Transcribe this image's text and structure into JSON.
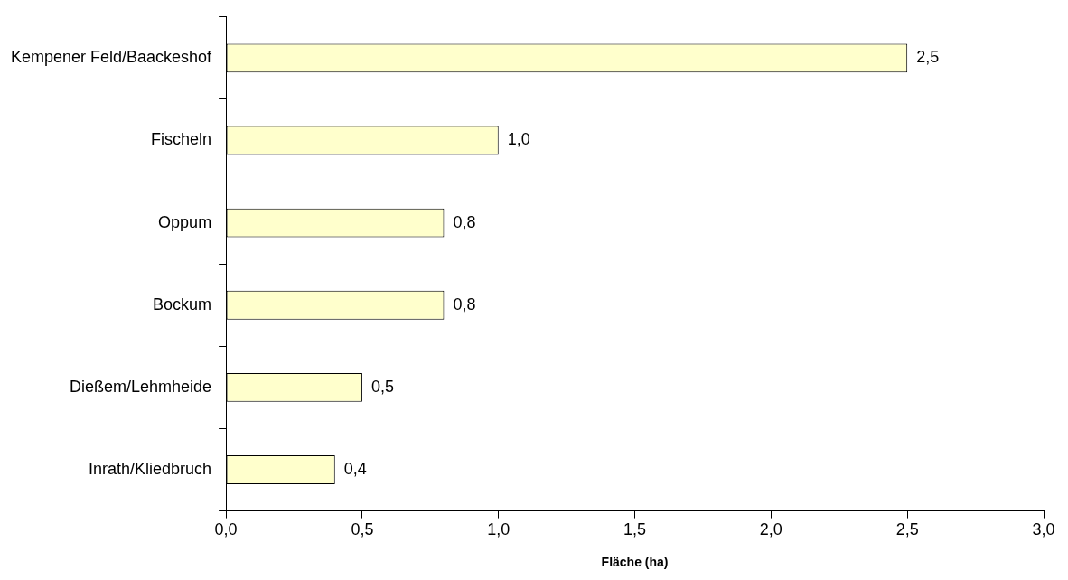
{
  "chart_data": {
    "type": "bar",
    "orientation": "horizontal",
    "xlabel": "Fläche (ha)",
    "categories": [
      "Kempener Feld/Baackeshof",
      "Fischeln",
      "Oppum",
      "Bockum",
      "Dießem/Lehmheide",
      "Inrath/Kliedbruch"
    ],
    "values": [
      2.5,
      1.0,
      0.8,
      0.8,
      0.5,
      0.4
    ],
    "value_labels": [
      "2,5",
      "1,0",
      "0,8",
      "0,8",
      "0,5",
      "0,4"
    ],
    "color": "#ffffcc",
    "xlim": [
      0,
      3
    ],
    "xticks": [
      {
        "value": 0,
        "label": "0,0"
      },
      {
        "value": 0.5,
        "label": "0,5"
      },
      {
        "value": 1,
        "label": "1,0"
      },
      {
        "value": 1.5,
        "label": "1,5"
      },
      {
        "value": 2,
        "label": "2,0"
      },
      {
        "value": 2.5,
        "label": "2,5"
      },
      {
        "value": 3,
        "label": "3,0"
      }
    ],
    "grid": false,
    "legend": false
  }
}
